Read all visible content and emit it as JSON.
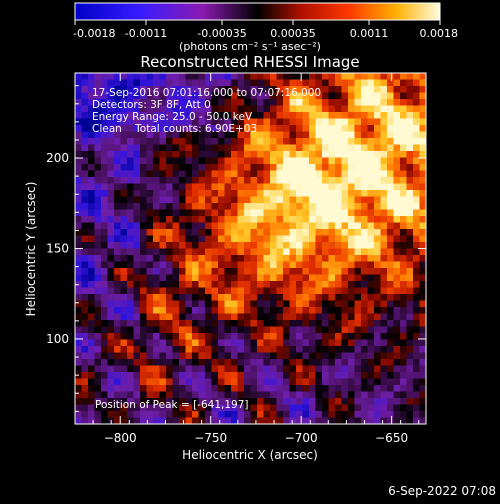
{
  "colorbar": {
    "tick_labels": [
      "-0.0018",
      "-0.0011",
      "-0.00035",
      "0.00035",
      "0.0011",
      "0.0018"
    ],
    "units_label": "(photons cm⁻² s⁻¹ asec⁻²)",
    "range": [
      -0.0018,
      0.0018
    ]
  },
  "chart_data": {
    "type": "heatmap",
    "title": "Reconstructed RHESSI Image",
    "xlabel": "Heliocentric X (arcsec)",
    "ylabel": "Heliocentric Y (arcsec)",
    "xlim": [
      -825,
      -631
    ],
    "ylim": [
      53,
      247
    ],
    "x_ticks": [
      -800,
      -750,
      -700,
      -650
    ],
    "x_tick_labels": [
      "−800",
      "−750",
      "−700",
      "−650"
    ],
    "y_ticks": [
      100,
      150,
      200
    ],
    "y_tick_labels": [
      "100",
      "150",
      "200"
    ],
    "grid": false,
    "colormap": "hot",
    "peak_position": [
      -641,
      197
    ],
    "annotations": {
      "time_range": "17-Sep-2016 07:01:16.000 to 07:07:16.000",
      "detectors": "Detectors: 3F 8F, Att 0",
      "energy": "Energy Range: 25.0 - 50.0 keV",
      "method": "Clean    Total counts: 6.90E+03",
      "peak": "Position of Peak = [-641,197]"
    }
  },
  "footer": {
    "timestamp": "6-Sep-2022 07:08"
  }
}
